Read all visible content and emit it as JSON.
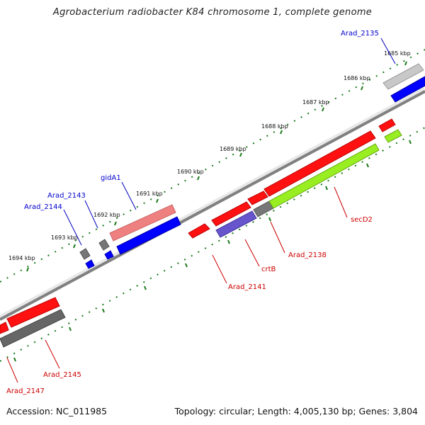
{
  "title": "Agrobacterium radiobacter K84 chromosome 1, complete genome",
  "footer": {
    "accession": "Accession: NC_011985",
    "topology": "Topology: circular; Length: 4,005,130 bp; Genes: 3,804"
  },
  "colors": {
    "outer_forward": "#ff0000",
    "outer_forward_light": "#f08080",
    "outer_reverse": "#0000ff",
    "inner_forward_lime": "#99ee22",
    "inner_reverse_purple": "#6655cc",
    "gene_grey": "#777777",
    "tick": "#1a7a1a",
    "backbone": "#888888"
  },
  "scale_labels": [
    "1685 kbp",
    "1686 kbp",
    "1687 kbp",
    "1688 kbp",
    "1689 kbp",
    "1690 kbp",
    "1691 kbp",
    "1692 kbp",
    "1693 kbp",
    "1694 kbp"
  ],
  "gene_labels": {
    "arad_2135": "Arad_2135",
    "gida1": "gidA1",
    "arad_2143": "Arad_2143",
    "arad_2144": "Arad_2144",
    "secd2": "secD2",
    "arad_2138": "Arad_2138",
    "crtb": "crtB",
    "arad_2141": "Arad_2141",
    "arad_2145": "Arad_2145",
    "arad_2147": "Arad_2147"
  }
}
